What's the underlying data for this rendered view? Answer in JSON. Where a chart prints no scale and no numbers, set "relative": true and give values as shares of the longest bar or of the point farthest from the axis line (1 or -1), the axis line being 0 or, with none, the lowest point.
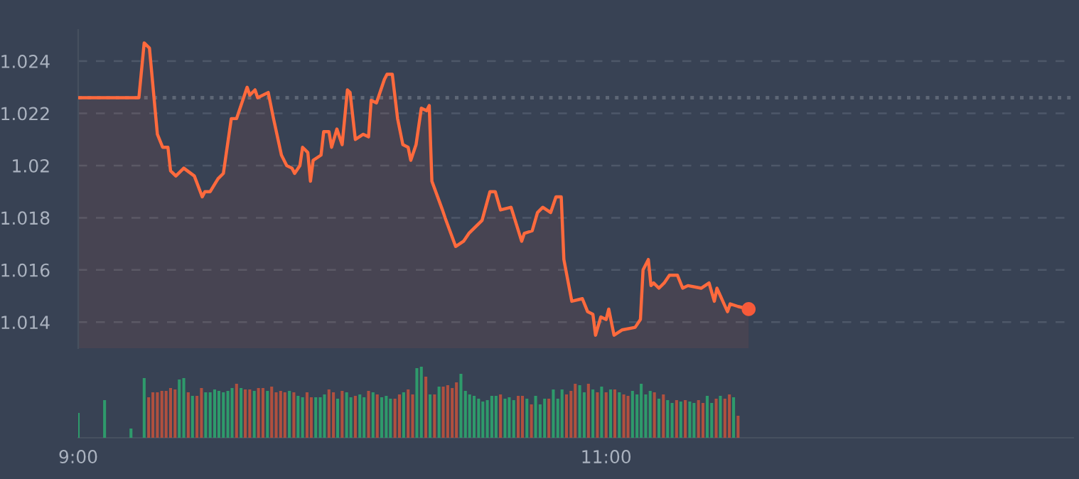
{
  "chart_data": [
    {
      "type": "area",
      "xlim": [
        9,
        12.77
      ],
      "ylim": [
        1.013,
        1.0252
      ],
      "yticks": [
        1.014,
        1.016,
        1.018,
        1.02,
        1.022,
        1.024
      ],
      "tick_labels": "y",
      "grid": "y",
      "ref_lines": [
        {
          "axis": "y",
          "value": 1.0226,
          "color": "#5d6675",
          "line_style": "dotted"
        }
      ],
      "series": [
        {
          "type": "area",
          "color": "#ff6a3d",
          "marker": "none",
          "line_style": "solid",
          "x": [
            9.0,
            9.23,
            9.25,
            9.27,
            9.3,
            9.32,
            9.34,
            9.35,
            9.37,
            9.4,
            9.44,
            9.47,
            9.48,
            9.5,
            9.53,
            9.55,
            9.58,
            9.6,
            9.64,
            9.65,
            9.67,
            9.68,
            9.72,
            9.74,
            9.77,
            9.79,
            9.81,
            9.82,
            9.84,
            9.85,
            9.87,
            9.88,
            9.89,
            9.92,
            9.93,
            9.95,
            9.96,
            9.98,
            10.0,
            10.02,
            10.03,
            10.05,
            10.08,
            10.1,
            10.11,
            10.13,
            10.16,
            10.17,
            10.19,
            10.21,
            10.23,
            10.25,
            10.26,
            10.28,
            10.3,
            10.32,
            10.33,
            10.34,
            10.38,
            10.39,
            10.43,
            10.46,
            10.48,
            10.53,
            10.56,
            10.58,
            10.6,
            10.64,
            10.68,
            10.69,
            10.72,
            10.74,
            10.76,
            10.79,
            10.81,
            10.83,
            10.84,
            10.87,
            10.91,
            10.93,
            10.95,
            10.96,
            10.98,
            11.0,
            11.01,
            11.03,
            11.06,
            11.11,
            11.13,
            11.14,
            11.16,
            11.17,
            11.18,
            11.2,
            11.22,
            11.24,
            11.27,
            11.29,
            11.31,
            11.36,
            11.39,
            11.41,
            11.42,
            11.46,
            11.47,
            11.5,
            11.54
          ],
          "values": [
            1.0226,
            1.0226,
            1.0247,
            1.0245,
            1.0212,
            1.0207,
            1.0207,
            1.0198,
            1.0196,
            1.0199,
            1.0196,
            1.0188,
            1.019,
            1.019,
            1.0195,
            1.0197,
            1.0218,
            1.0218,
            1.023,
            1.0227,
            1.0229,
            1.0226,
            1.0228,
            1.0218,
            1.0204,
            1.02,
            1.0199,
            1.0197,
            1.02,
            1.0207,
            1.0205,
            1.0194,
            1.0202,
            1.0204,
            1.0213,
            1.0213,
            1.0207,
            1.0214,
            1.0208,
            1.0229,
            1.0228,
            1.021,
            1.0212,
            1.0211,
            1.0225,
            1.0224,
            1.0233,
            1.0235,
            1.0235,
            1.0218,
            1.0208,
            1.0207,
            1.0202,
            1.0208,
            1.0222,
            1.0221,
            1.0223,
            1.0194,
            1.0183,
            1.018,
            1.0169,
            1.0171,
            1.0174,
            1.0179,
            1.019,
            1.019,
            1.0183,
            1.0184,
            1.0171,
            1.0174,
            1.0175,
            1.0182,
            1.0184,
            1.0182,
            1.0188,
            1.0188,
            1.0164,
            1.0148,
            1.0149,
            1.0144,
            1.0143,
            1.0135,
            1.0142,
            1.0141,
            1.0145,
            1.0135,
            1.0137,
            1.0138,
            1.0141,
            1.016,
            1.0164,
            1.0154,
            1.0155,
            1.0153,
            1.0155,
            1.0158,
            1.0158,
            1.0153,
            1.0154,
            1.0153,
            1.0155,
            1.0148,
            1.0153,
            1.0144,
            1.0147,
            1.0146,
            1.0145
          ]
        },
        {
          "type": "scatter",
          "color": "#f65a3a",
          "marker": "circle",
          "x": [
            11.54
          ],
          "values": [
            1.0145
          ]
        }
      ]
    },
    {
      "type": "bar",
      "relative": true,
      "xlim": [
        9,
        12.77
      ],
      "xticks": [
        {
          "value": 9,
          "label": "9:00"
        },
        {
          "value": 11,
          "label": "11:00"
        }
      ],
      "tick_labels": "x",
      "grid": false,
      "x": [
        9.0,
        9.1,
        9.2,
        9.25,
        9.267,
        9.283,
        9.3,
        9.317,
        9.333,
        9.35,
        9.367,
        9.383,
        9.4,
        9.417,
        9.433,
        9.45,
        9.467,
        9.483,
        9.5,
        9.517,
        9.533,
        9.55,
        9.567,
        9.583,
        9.6,
        9.617,
        9.633,
        9.65,
        9.667,
        9.683,
        9.7,
        9.717,
        9.733,
        9.75,
        9.767,
        9.783,
        9.8,
        9.817,
        9.833,
        9.85,
        9.867,
        9.883,
        9.9,
        9.917,
        9.933,
        9.95,
        9.967,
        9.983,
        10.0,
        10.017,
        10.033,
        10.05,
        10.067,
        10.083,
        10.1,
        10.117,
        10.133,
        10.15,
        10.167,
        10.183,
        10.2,
        10.217,
        10.233,
        10.25,
        10.267,
        10.283,
        10.3,
        10.317,
        10.333,
        10.35,
        10.367,
        10.383,
        10.4,
        10.417,
        10.433,
        10.45,
        10.467,
        10.483,
        10.5,
        10.517,
        10.533,
        10.55,
        10.567,
        10.583,
        10.6,
        10.617,
        10.633,
        10.65,
        10.667,
        10.683,
        10.7,
        10.717,
        10.733,
        10.75,
        10.767,
        10.783,
        10.8,
        10.817,
        10.833,
        10.85,
        10.867,
        10.883,
        10.9,
        10.917,
        10.933,
        10.95,
        10.967,
        10.983,
        11.0,
        11.017,
        11.033,
        11.05,
        11.067,
        11.083,
        11.1,
        11.117,
        11.133,
        11.15,
        11.167,
        11.183,
        11.2,
        11.217,
        11.233,
        11.25,
        11.267,
        11.283,
        11.3,
        11.317,
        11.333,
        11.35,
        11.367,
        11.383,
        11.4,
        11.417,
        11.433,
        11.45,
        11.467,
        11.483,
        11.5
      ],
      "values": [
        0.35,
        0.53,
        0.13,
        0.84,
        0.57,
        0.64,
        0.64,
        0.66,
        0.66,
        0.7,
        0.68,
        0.82,
        0.84,
        0.64,
        0.59,
        0.59,
        0.7,
        0.64,
        0.64,
        0.68,
        0.66,
        0.64,
        0.66,
        0.7,
        0.76,
        0.7,
        0.68,
        0.68,
        0.66,
        0.7,
        0.7,
        0.66,
        0.72,
        0.64,
        0.66,
        0.64,
        0.66,
        0.64,
        0.59,
        0.57,
        0.64,
        0.57,
        0.57,
        0.57,
        0.61,
        0.68,
        0.64,
        0.55,
        0.66,
        0.64,
        0.57,
        0.59,
        0.61,
        0.57,
        0.66,
        0.64,
        0.61,
        0.57,
        0.59,
        0.55,
        0.55,
        0.61,
        0.64,
        0.68,
        0.61,
        0.98,
        1.0,
        0.86,
        0.61,
        0.61,
        0.72,
        0.72,
        0.74,
        0.7,
        0.78,
        0.9,
        0.66,
        0.61,
        0.59,
        0.55,
        0.51,
        0.53,
        0.59,
        0.59,
        0.61,
        0.55,
        0.57,
        0.53,
        0.59,
        0.59,
        0.55,
        0.47,
        0.59,
        0.47,
        0.55,
        0.55,
        0.68,
        0.55,
        0.68,
        0.61,
        0.66,
        0.76,
        0.74,
        0.64,
        0.76,
        0.68,
        0.64,
        0.72,
        0.64,
        0.68,
        0.68,
        0.64,
        0.61,
        0.59,
        0.66,
        0.61,
        0.76,
        0.61,
        0.66,
        0.64,
        0.55,
        0.61,
        0.53,
        0.49,
        0.53,
        0.51,
        0.53,
        0.51,
        0.49,
        0.53,
        0.49,
        0.59,
        0.49,
        0.55,
        0.59,
        0.55,
        0.61,
        0.57,
        0.31
      ],
      "colors": [
        "#2e9a6b",
        "#2e9a6b",
        "#2e9a6b",
        "#2e9a6b",
        "#b0503f",
        "#b0503f",
        "#b0503f",
        "#b0503f",
        "#b0503f",
        "#b0503f",
        "#b0503f",
        "#2e9a6b",
        "#2e9a6b",
        "#b0503f",
        "#2e9a6b",
        "#b0503f",
        "#b0503f",
        "#2e9a6b",
        "#2e9a6b",
        "#2e9a6b",
        "#2e9a6b",
        "#2e9a6b",
        "#2e9a6b",
        "#2e9a6b",
        "#b0503f",
        "#2e9a6b",
        "#b0503f",
        "#b0503f",
        "#2e9a6b",
        "#b0503f",
        "#b0503f",
        "#2e9a6b",
        "#b0503f",
        "#b0503f",
        "#b0503f",
        "#b0503f",
        "#2e9a6b",
        "#b0503f",
        "#2e9a6b",
        "#2e9a6b",
        "#b0503f",
        "#b0503f",
        "#2e9a6b",
        "#2e9a6b",
        "#2e9a6b",
        "#b0503f",
        "#b0503f",
        "#2e9a6b",
        "#b0503f",
        "#2e9a6b",
        "#2e9a6b",
        "#b0503f",
        "#2e9a6b",
        "#2e9a6b",
        "#b0503f",
        "#2e9a6b",
        "#b0503f",
        "#2e9a6b",
        "#2e9a6b",
        "#2e9a6b",
        "#b0503f",
        "#b0503f",
        "#2e9a6b",
        "#b0503f",
        "#b0503f",
        "#2e9a6b",
        "#2e9a6b",
        "#b0503f",
        "#2e9a6b",
        "#b0503f",
        "#2e9a6b",
        "#b0503f",
        "#b0503f",
        "#b0503f",
        "#b0503f",
        "#2e9a6b",
        "#2e9a6b",
        "#2e9a6b",
        "#2e9a6b",
        "#2e9a6b",
        "#2e9a6b",
        "#2e9a6b",
        "#2e9a6b",
        "#2e9a6b",
        "#b0503f",
        "#2e9a6b",
        "#2e9a6b",
        "#2e9a6b",
        "#b0503f",
        "#b0503f",
        "#2e9a6b",
        "#b0503f",
        "#2e9a6b",
        "#2e9a6b",
        "#2e9a6b",
        "#b0503f",
        "#2e9a6b",
        "#2e9a6b",
        "#2e9a6b",
        "#b0503f",
        "#b0503f",
        "#b0503f",
        "#2e9a6b",
        "#2e9a6b",
        "#b0503f",
        "#2e9a6b",
        "#b0503f",
        "#2e9a6b",
        "#b0503f",
        "#2e9a6b",
        "#b0503f",
        "#2e9a6b",
        "#b0503f",
        "#b0503f",
        "#2e9a6b",
        "#2e9a6b",
        "#2e9a6b",
        "#2e9a6b",
        "#2e9a6b",
        "#b0503f",
        "#2e9a6b",
        "#b0503f",
        "#2e9a6b",
        "#2e9a6b",
        "#b0503f",
        "#2e9a6b",
        "#b0503f",
        "#2e9a6b",
        "#2e9a6b",
        "#b0503f",
        "#b0503f",
        "#2e9a6b",
        "#2e9a6b",
        "#b0503f",
        "#2e9a6b",
        "#b0503f",
        "#b0503f",
        "#2e9a6b",
        "#b0503f"
      ]
    }
  ]
}
